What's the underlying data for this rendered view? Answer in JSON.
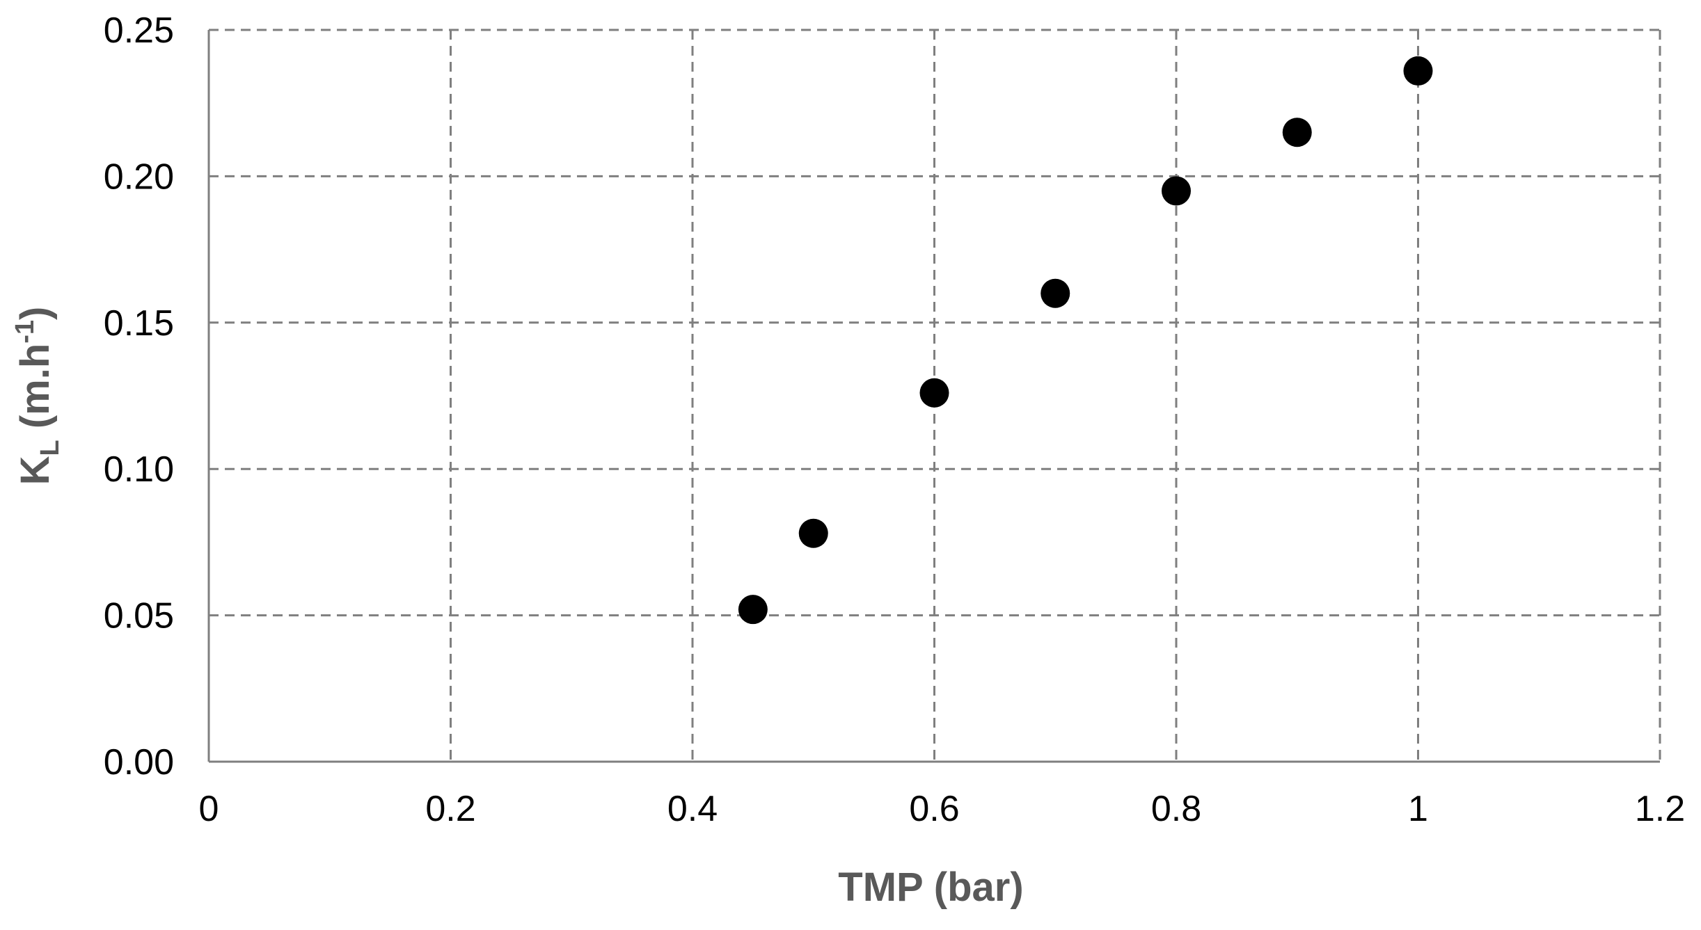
{
  "chart_data": {
    "type": "scatter",
    "title": "",
    "xlabel": "TMP (bar)",
    "ylabel": {
      "base": "K",
      "sub": "L",
      "unit_open": " (m.h",
      "sup": "-1",
      "unit_close": ")"
    },
    "xlim": [
      0,
      1.2
    ],
    "ylim": [
      0,
      0.25
    ],
    "x_ticks": [
      {
        "value": 0,
        "label": "0"
      },
      {
        "value": 0.2,
        "label": "0.2"
      },
      {
        "value": 0.4,
        "label": "0.4"
      },
      {
        "value": 0.6,
        "label": "0.6"
      },
      {
        "value": 0.8,
        "label": "0.8"
      },
      {
        "value": 1.0,
        "label": "1"
      },
      {
        "value": 1.2,
        "label": "1.2"
      }
    ],
    "y_ticks": [
      {
        "value": 0,
        "label": "0.00"
      },
      {
        "value": 0.05,
        "label": "0.05"
      },
      {
        "value": 0.1,
        "label": "0.10"
      },
      {
        "value": 0.15,
        "label": "0.15"
      },
      {
        "value": 0.2,
        "label": "0.20"
      },
      {
        "value": 0.25,
        "label": "0.25"
      }
    ],
    "grid": true,
    "grid_style": "dashed",
    "legend": "none",
    "series": [
      {
        "x": [
          0.45,
          0.5,
          0.6,
          0.7,
          0.8,
          0.9,
          1.0
        ],
        "y": [
          0.052,
          0.078,
          0.126,
          0.16,
          0.195,
          0.215,
          0.236
        ],
        "color": "#000000",
        "marker": "circle"
      }
    ]
  }
}
